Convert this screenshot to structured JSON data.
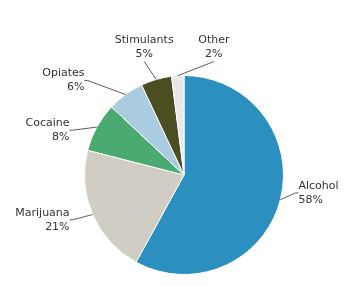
{
  "chart_data": {
    "type": "pie",
    "categories": [
      "Alcohol",
      "Marijuana",
      "Cocaine",
      "Opiates",
      "Stimulants",
      "Other"
    ],
    "values": [
      58,
      21,
      8,
      6,
      5,
      2
    ],
    "value_labels": [
      "58%",
      "21%",
      "8%",
      "6%",
      "5%",
      "2%"
    ],
    "colors": [
      "#2b8fc0",
      "#d0cdc5",
      "#4aaa70",
      "#aacce0",
      "#4a4e20",
      "#e8e8e8"
    ],
    "data_labels": true
  }
}
